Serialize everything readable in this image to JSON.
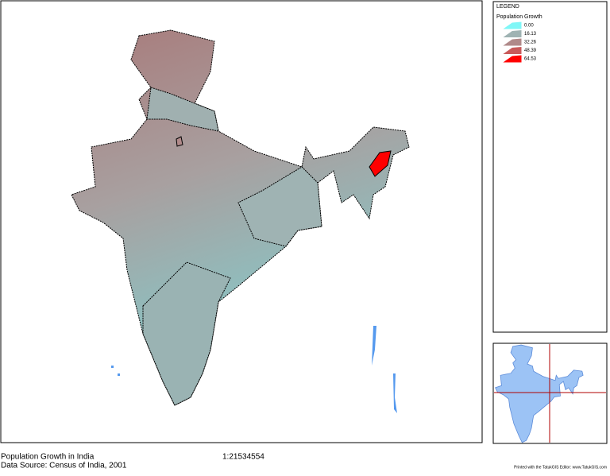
{
  "legend": {
    "heading": "LEGEND",
    "title": "Population Growth",
    "items": [
      {
        "label": "0.00",
        "color": "#7ff7f7"
      },
      {
        "label": "16.13",
        "color": "#9fb3b3"
      },
      {
        "label": "32.26",
        "color": "#b08a8a"
      },
      {
        "label": "48.39",
        "color": "#c85a5a"
      },
      {
        "label": "64.53",
        "color": "#ff0000"
      }
    ]
  },
  "footer": {
    "title": "Population Growth in India",
    "source": "Data Source: Census of India, 2001",
    "scale": "1:21534554",
    "credit": "Printed with the TatukGIS Editor: www.TatukGIS.com"
  }
}
